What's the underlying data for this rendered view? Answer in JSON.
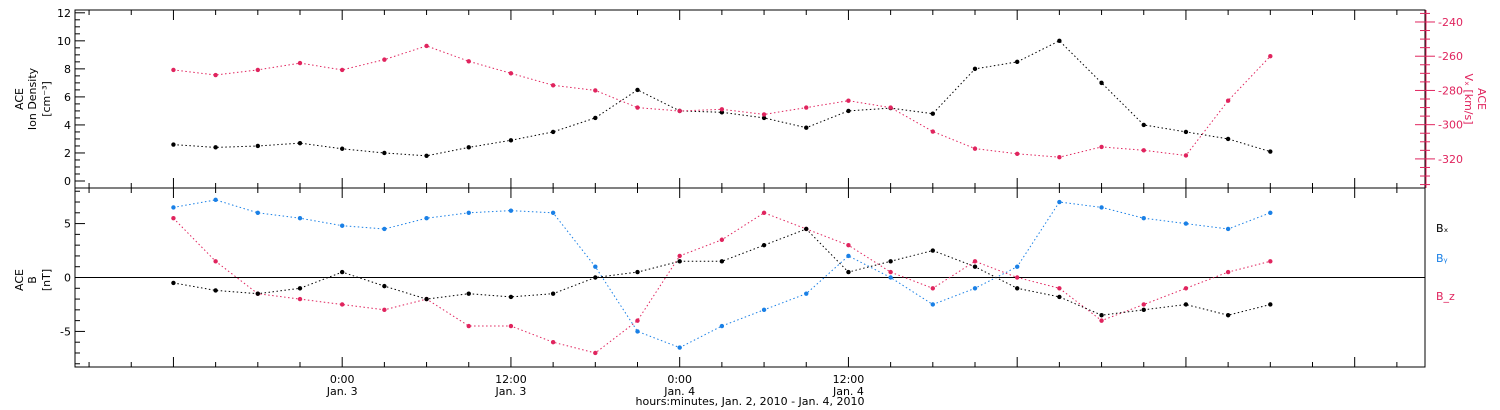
{
  "colors": {
    "black": "#000000",
    "red": "#e0245e",
    "blue": "#1a80e6"
  },
  "chart_data": [
    {
      "type": "scatter",
      "panel": "top",
      "left_axis": {
        "label_lines": [
          "ACE",
          "Ion Density",
          "[cm⁻³]"
        ],
        "ylim": [
          -0.5,
          12.2
        ],
        "ticks": [
          0,
          2,
          4,
          6,
          8,
          10,
          12
        ],
        "tick_labels": [
          "0",
          "2",
          "4",
          "6",
          "8",
          "10",
          "12"
        ]
      },
      "right_axis": {
        "label_lines": [
          "ACE",
          "Vₓ [km/s]"
        ],
        "ylim": [
          -337,
          -233
        ],
        "ticks": [
          -240,
          -260,
          -280,
          -300,
          -320
        ],
        "tick_labels": [
          "-240",
          "-260",
          "-280",
          "-300",
          "-320"
        ]
      },
      "series": [
        {
          "color": "black",
          "axis": "left",
          "x": [
            0,
            3,
            6,
            9,
            12,
            15,
            18,
            21,
            24,
            27,
            30,
            33,
            36,
            39,
            42,
            45,
            48,
            51,
            54,
            57,
            60,
            63,
            66,
            69,
            72,
            75,
            78
          ],
          "y": [
            2.6,
            2.4,
            2.5,
            2.7,
            2.3,
            2.0,
            1.8,
            2.4,
            2.9,
            3.5,
            4.5,
            6.5,
            5.0,
            4.9,
            4.5,
            3.8,
            5.0,
            5.2,
            4.8,
            8.0,
            8.5,
            10.0,
            7.0,
            4.0,
            3.5,
            3.0,
            2.1
          ]
        },
        {
          "color": "red",
          "axis": "right",
          "x": [
            0,
            3,
            6,
            9,
            12,
            15,
            18,
            21,
            24,
            27,
            30,
            33,
            36,
            39,
            42,
            45,
            48,
            51,
            54,
            57,
            60,
            63,
            66,
            69,
            72,
            75,
            78
          ],
          "y": [
            -268,
            -271,
            -268,
            -264,
            -268,
            -262,
            -254,
            -263,
            -270,
            -277,
            -280,
            -290,
            -292,
            -291,
            -294,
            -290,
            -286,
            -290,
            -304,
            -314,
            -317,
            -319,
            -313,
            -315,
            -318,
            -286,
            -260
          ]
        }
      ]
    },
    {
      "type": "scatter",
      "panel": "bottom",
      "left_axis": {
        "label_lines": [
          "ACE",
          "B",
          "[nT]"
        ],
        "ylim": [
          -8.3,
          8.3
        ],
        "ticks": [
          -5,
          0,
          5
        ],
        "tick_labels": [
          "-5",
          "0",
          "5"
        ]
      },
      "zero_line": true,
      "legend": [
        "Bₓ",
        "Bᵧ",
        "B_z"
      ],
      "series": [
        {
          "name": "Bₓ",
          "color": "black",
          "x": [
            0,
            3,
            6,
            9,
            12,
            15,
            18,
            21,
            24,
            27,
            30,
            33,
            36,
            39,
            42,
            45,
            48,
            51,
            54,
            57,
            60,
            63,
            66,
            69,
            72,
            75,
            78
          ],
          "y": [
            -0.5,
            -1.2,
            -1.5,
            -1.0,
            0.5,
            -0.8,
            -2.0,
            -1.5,
            -1.8,
            -1.5,
            0.0,
            0.5,
            1.5,
            1.5,
            3.0,
            4.5,
            0.5,
            1.5,
            2.5,
            1.0,
            -1.0,
            -1.8,
            -3.5,
            -3.0,
            -2.5,
            -3.5,
            -2.5
          ]
        },
        {
          "name": "Bᵧ",
          "color": "blue",
          "x": [
            0,
            3,
            6,
            9,
            12,
            15,
            18,
            21,
            24,
            27,
            30,
            33,
            36,
            39,
            42,
            45,
            48,
            51,
            54,
            57,
            60,
            63,
            66,
            69,
            72,
            75,
            78
          ],
          "y": [
            6.5,
            7.2,
            6.0,
            5.5,
            4.8,
            4.5,
            5.5,
            6.0,
            6.2,
            6.0,
            1.0,
            -5.0,
            -6.5,
            -4.5,
            -3.0,
            -1.5,
            2.0,
            0.0,
            -2.5,
            -1.0,
            1.0,
            7.0,
            6.5,
            5.5,
            5.0,
            4.5,
            6.0
          ]
        },
        {
          "name": "B_z",
          "color": "red",
          "x": [
            0,
            3,
            6,
            9,
            12,
            15,
            18,
            21,
            24,
            27,
            30,
            33,
            36,
            39,
            42,
            45,
            48,
            51,
            54,
            57,
            60,
            63,
            66,
            69,
            72,
            75,
            78
          ],
          "y": [
            5.5,
            1.5,
            -1.5,
            -2.0,
            -2.5,
            -3.0,
            -2.0,
            -4.5,
            -4.5,
            -6.0,
            -7.0,
            -4.0,
            2.0,
            3.5,
            6.0,
            4.5,
            3.0,
            0.5,
            -1.0,
            1.5,
            0.0,
            -1.0,
            -4.0,
            -2.5,
            -1.0,
            0.5,
            1.5
          ]
        }
      ]
    }
  ],
  "x_axis": {
    "xlim": [
      -7,
      89
    ],
    "ticks": [
      12,
      24,
      36,
      48,
      60,
      72
    ],
    "tick_labels": [
      {
        "time": "0:00",
        "day": "Jan. 3"
      },
      {
        "time": "12:00",
        "day": "Jan. 3"
      },
      {
        "time": "0:00",
        "day": "Jan. 4"
      },
      {
        "time": "12:00",
        "day": "Jan. 4"
      }
    ],
    "tick_label_positions": [
      12,
      24,
      36,
      48
    ],
    "title": "hours:minutes, Jan.  2, 2010 - Jan.  4, 2010"
  }
}
